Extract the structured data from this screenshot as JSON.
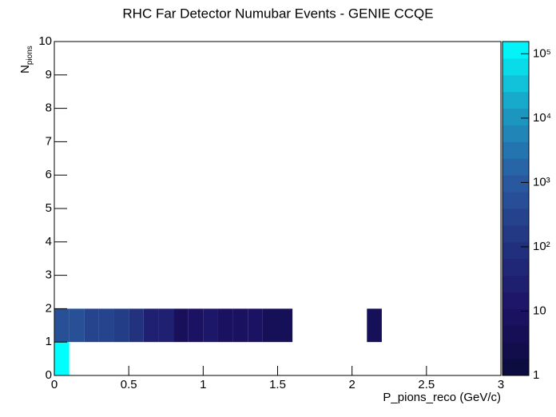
{
  "chart_data": {
    "type": "heatmap",
    "title": "RHC Far Detector Numubar Events - GENIE CCQE",
    "xlabel": "P_pions_reco (GeV/c)",
    "ylabel": {
      "main": "N",
      "sub": "pions"
    },
    "x_bins": [
      0,
      0.1,
      0.2,
      0.3,
      0.4,
      0.5,
      0.6,
      0.7,
      0.8,
      0.9,
      1,
      1.1,
      1.2,
      1.3,
      1.4,
      1.5,
      1.6,
      1.7,
      1.8,
      1.9,
      2,
      2.1,
      2.2,
      2.3,
      2.4,
      2.5,
      2.6,
      2.7,
      2.8,
      2.9,
      3
    ],
    "y_bins": [
      0,
      1,
      2,
      3,
      4,
      5,
      6,
      7,
      8,
      9,
      10
    ],
    "z": [
      [
        150000,
        null,
        null,
        null,
        null,
        null,
        null,
        null,
        null,
        null,
        null,
        null,
        null,
        null,
        null,
        null,
        null,
        null,
        null,
        null,
        null,
        null,
        null,
        null,
        null,
        null,
        null,
        null,
        null,
        null
      ],
      [
        600,
        600,
        300,
        300,
        200,
        100,
        30,
        30,
        6,
        10,
        15,
        8,
        8,
        10,
        5,
        5,
        null,
        null,
        null,
        null,
        null,
        5,
        null,
        null,
        null,
        null,
        null,
        null,
        null,
        null
      ],
      [
        null,
        null,
        null,
        null,
        null,
        null,
        null,
        null,
        null,
        null,
        null,
        null,
        null,
        null,
        null,
        null,
        null,
        null,
        null,
        null,
        null,
        null,
        null,
        null,
        null,
        null,
        null,
        null,
        null,
        null
      ],
      [
        null,
        null,
        null,
        null,
        null,
        null,
        null,
        null,
        null,
        null,
        null,
        null,
        null,
        null,
        null,
        null,
        null,
        null,
        null,
        null,
        null,
        null,
        null,
        null,
        null,
        null,
        null,
        null,
        null,
        null
      ],
      [
        null,
        null,
        null,
        null,
        null,
        null,
        null,
        null,
        null,
        null,
        null,
        null,
        null,
        null,
        null,
        null,
        null,
        null,
        null,
        null,
        null,
        null,
        null,
        null,
        null,
        null,
        null,
        null,
        null,
        null
      ],
      [
        null,
        null,
        null,
        null,
        null,
        null,
        null,
        null,
        null,
        null,
        null,
        null,
        null,
        null,
        null,
        null,
        null,
        null,
        null,
        null,
        null,
        null,
        null,
        null,
        null,
        null,
        null,
        null,
        null,
        null
      ],
      [
        null,
        null,
        null,
        null,
        null,
        null,
        null,
        null,
        null,
        null,
        null,
        null,
        null,
        null,
        null,
        null,
        null,
        null,
        null,
        null,
        null,
        null,
        null,
        null,
        null,
        null,
        null,
        null,
        null,
        null
      ],
      [
        null,
        null,
        null,
        null,
        null,
        null,
        null,
        null,
        null,
        null,
        null,
        null,
        null,
        null,
        null,
        null,
        null,
        null,
        null,
        null,
        null,
        null,
        null,
        null,
        null,
        null,
        null,
        null,
        null,
        null
      ],
      [
        null,
        null,
        null,
        null,
        null,
        null,
        null,
        null,
        null,
        null,
        null,
        null,
        null,
        null,
        null,
        null,
        null,
        null,
        null,
        null,
        null,
        null,
        null,
        null,
        null,
        null,
        null,
        null,
        null,
        null
      ],
      [
        null,
        null,
        null,
        null,
        null,
        null,
        null,
        null,
        null,
        null,
        null,
        null,
        null,
        null,
        null,
        null,
        null,
        null,
        null,
        null,
        null,
        null,
        null,
        null,
        null,
        null,
        null,
        null,
        null,
        null
      ]
    ],
    "xlim": [
      0,
      3
    ],
    "xticks": [
      0,
      0.5,
      1,
      1.5,
      2,
      2.5,
      3
    ],
    "ylim": [
      0,
      10
    ],
    "yticks": [
      0,
      1,
      2,
      3,
      4,
      5,
      6,
      7,
      8,
      9,
      10
    ],
    "zlim": [
      1,
      155000
    ],
    "zlog": true,
    "zticks": [
      1,
      10,
      {
        "value": 100,
        "label": "10²"
      },
      {
        "value": 1000,
        "label": "10³"
      },
      {
        "value": 10000,
        "label": "10⁴"
      },
      {
        "value": 100000,
        "label": "10⁵"
      }
    ],
    "colorscale": [
      "#0b0b3b",
      "#1c1266",
      "#22347f",
      "#2a5da3",
      "#1b9ec3",
      "#00ffff"
    ]
  }
}
